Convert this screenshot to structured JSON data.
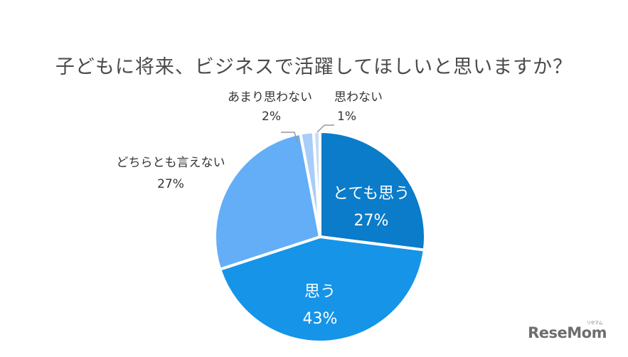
{
  "chart_data": {
    "type": "pie",
    "title": "子どもに将来、ビジネスで活躍してほしいと思いますか？",
    "start_angle": "12 o'clock, clockwise",
    "slices": [
      {
        "label": "とても思う",
        "value": 27,
        "display": "27%",
        "color": "#0a7cc9"
      },
      {
        "label": "思う",
        "value": 43,
        "display": "43%",
        "color": "#1594e8"
      },
      {
        "label": "どちらとも言えない",
        "value": 27,
        "display": "27%",
        "color": "#63aef7"
      },
      {
        "label": "あまり思わない",
        "value": 2,
        "display": "2%",
        "color": "#a9cdf9"
      },
      {
        "label": "思わない",
        "value": 1,
        "display": "1%",
        "color": "#c7dcf5"
      }
    ],
    "legend": "none (labels on/next to slices)"
  },
  "labels": {
    "title": "子どもに将来、ビジネスで活躍してほしいと思いますか？",
    "s0_name": "とても思う",
    "s0_pct": "27%",
    "s1_name": "思う",
    "s1_pct": "43%",
    "s2_name": "どちらとも言えない",
    "s2_pct": "27%",
    "s3_name": "あまり思わない",
    "s3_pct": "2%",
    "s4_name": "思わない",
    "s4_pct": "1%"
  },
  "branding": {
    "logo": "ReseMom",
    "logo_sub": "リセマム"
  }
}
